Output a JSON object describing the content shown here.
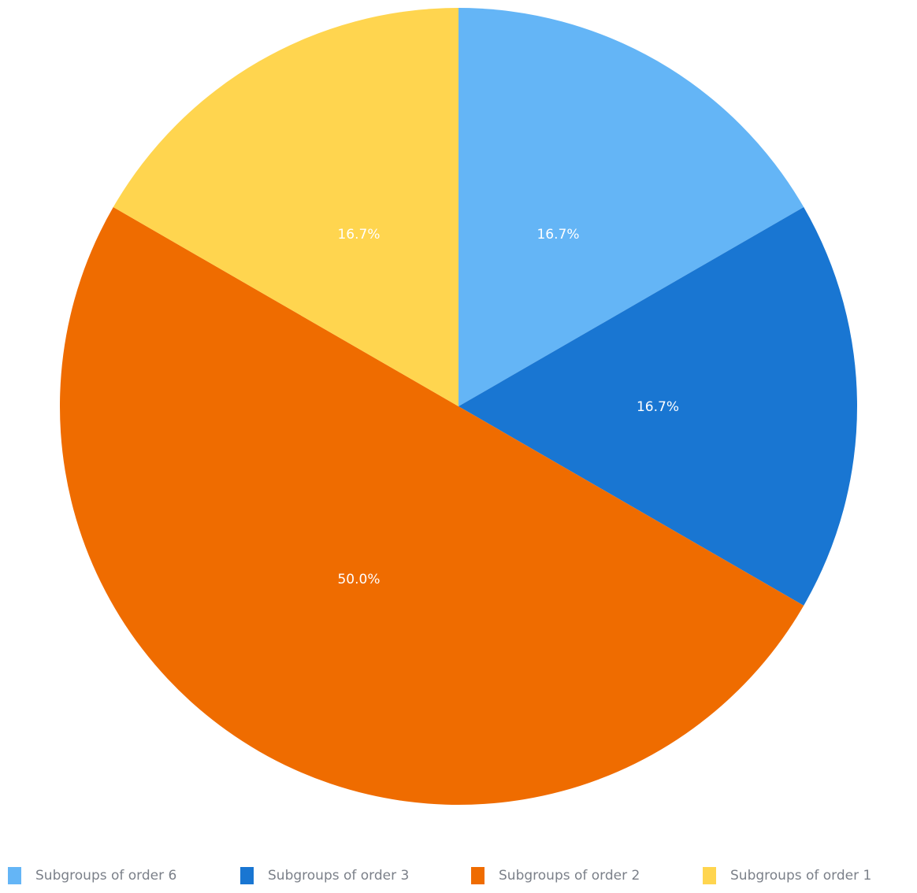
{
  "chart_data": {
    "type": "pie",
    "title": "",
    "start": "12 o'clock",
    "direction": "clockwise",
    "legend_position": "bottom",
    "slices": [
      {
        "label": "Subgroups of order 6",
        "value": 1,
        "percent_label": "16.7%",
        "color": "#64B5F6"
      },
      {
        "label": "Subgroups of order 3",
        "value": 1,
        "percent_label": "16.7%",
        "color": "#1976D2"
      },
      {
        "label": "Subgroups of order 2",
        "value": 3,
        "percent_label": "50.0%",
        "color": "#EF6C00"
      },
      {
        "label": "Subgroups of order 1",
        "value": 1,
        "percent_label": "16.7%",
        "color": "#FFD54F"
      }
    ]
  }
}
